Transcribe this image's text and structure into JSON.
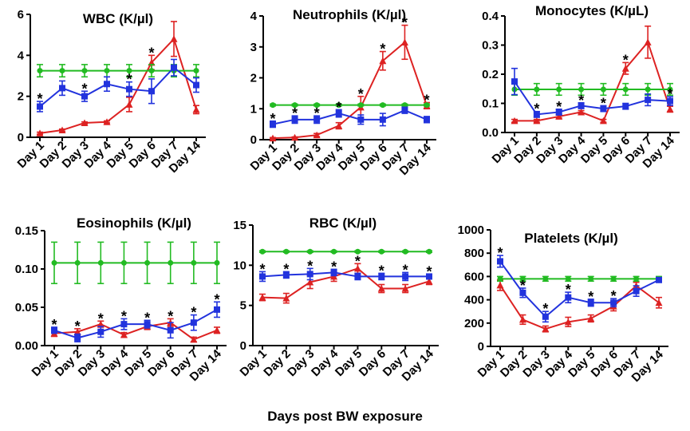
{
  "x_axis_label": "Days post BW exposure",
  "colors": {
    "control": "#22bb22",
    "treated_a": "#2233dd",
    "treated_b": "#dd2222"
  },
  "chart_data": [
    {
      "type": "line",
      "title": "WBC  (K/µl)",
      "categories": [
        "Day 1",
        "Day 2",
        "Day 3",
        "Day 4",
        "Day 5",
        "Day 6",
        "Day 7",
        "Day 14"
      ],
      "ylim": [
        0,
        6
      ],
      "yticks": [
        "0",
        "2",
        "4",
        "6"
      ],
      "series": [
        {
          "name": "green",
          "values": [
            3.25,
            3.25,
            3.25,
            3.25,
            3.25,
            3.25,
            3.25,
            3.25
          ],
          "errors": [
            0.3,
            0.3,
            0.3,
            0.3,
            0.3,
            0.3,
            0.3,
            0.3
          ]
        },
        {
          "name": "blue",
          "values": [
            1.5,
            2.4,
            2.0,
            2.6,
            2.35,
            2.25,
            3.4,
            2.55
          ],
          "errors": [
            0.25,
            0.35,
            0.25,
            0.35,
            0.35,
            0.6,
            0.4,
            0.35
          ]
        },
        {
          "name": "red",
          "values": [
            0.2,
            0.35,
            0.7,
            0.75,
            1.6,
            3.65,
            4.8,
            1.35
          ],
          "errors": [
            0.05,
            0.05,
            0.05,
            0.05,
            0.35,
            0.35,
            0.85,
            0.2
          ]
        }
      ],
      "stars": [
        true,
        false,
        true,
        false,
        true,
        true,
        false,
        false
      ]
    },
    {
      "type": "line",
      "title": "Neutrophils (K/µl)",
      "categories": [
        "Day 1",
        "Day 2",
        "Day 3",
        "Day 4",
        "Day 5",
        "Day 6",
        "Day 7",
        "Day 14"
      ],
      "ylim": [
        0,
        4
      ],
      "yticks": [
        "0",
        "1",
        "2",
        "3",
        "4"
      ],
      "series": [
        {
          "name": "green",
          "values": [
            1.12,
            1.12,
            1.12,
            1.12,
            1.12,
            1.12,
            1.12,
            1.12
          ],
          "errors": [
            0.03,
            0.03,
            0.03,
            0.03,
            0.03,
            0.03,
            0.03,
            0.03
          ]
        },
        {
          "name": "blue",
          "values": [
            0.5,
            0.65,
            0.65,
            0.85,
            0.65,
            0.65,
            0.95,
            0.65
          ],
          "errors": [
            0.1,
            0.12,
            0.12,
            0.12,
            0.15,
            0.2,
            0.1,
            0.1
          ]
        },
        {
          "name": "red",
          "values": [
            0.05,
            0.07,
            0.15,
            0.45,
            1.05,
            2.55,
            3.15,
            1.1
          ],
          "errors": [
            0.02,
            0.02,
            0.05,
            0.1,
            0.35,
            0.3,
            0.55,
            0.1
          ]
        }
      ],
      "stars": [
        true,
        true,
        true,
        true,
        true,
        true,
        true,
        true
      ]
    },
    {
      "type": "line",
      "title": "Monocytes (K/µL)",
      "categories": [
        "Day 1",
        "Day 2",
        "Day 3",
        "Day 4",
        "Day 5",
        "Day 6",
        "Day 7",
        "Day 14"
      ],
      "ylim": [
        0,
        0.4
      ],
      "yticks": [
        "0.0",
        "0.1",
        "0.2",
        "0.3",
        "0.4"
      ],
      "series": [
        {
          "name": "green",
          "values": [
            0.148,
            0.148,
            0.148,
            0.148,
            0.148,
            0.148,
            0.148,
            0.148
          ],
          "errors": [
            0.02,
            0.02,
            0.02,
            0.02,
            0.02,
            0.02,
            0.02,
            0.02
          ]
        },
        {
          "name": "blue",
          "values": [
            0.175,
            0.062,
            0.07,
            0.092,
            0.082,
            0.09,
            0.112,
            0.108
          ],
          "errors": [
            0.045,
            0.01,
            0.01,
            0.01,
            0.01,
            0.01,
            0.02,
            0.015
          ]
        },
        {
          "name": "red",
          "values": [
            0.04,
            0.04,
            0.055,
            0.07,
            0.04,
            0.22,
            0.31,
            0.08
          ],
          "errors": [
            0.005,
            0.005,
            0.005,
            0.005,
            0.005,
            0.02,
            0.055,
            0.01
          ]
        }
      ],
      "stars": [
        false,
        true,
        true,
        true,
        true,
        true,
        false,
        true
      ]
    },
    {
      "type": "line",
      "title": "Eosinophils  (K/µl)",
      "categories": [
        "Day 1",
        "Day 2",
        "Day 3",
        "Day 4",
        "Day 5",
        "Day 6",
        "Day 7",
        "Day 14"
      ],
      "ylim": [
        0,
        0.15
      ],
      "yticks": [
        "0.00",
        "0.05",
        "0.10",
        "0.15"
      ],
      "series": [
        {
          "name": "green",
          "values": [
            0.108,
            0.108,
            0.108,
            0.108,
            0.108,
            0.108,
            0.108,
            0.108
          ],
          "errors": [
            0.027,
            0.027,
            0.027,
            0.027,
            0.027,
            0.027,
            0.027,
            0.027
          ]
        },
        {
          "name": "blue",
          "values": [
            0.02,
            0.01,
            0.018,
            0.028,
            0.028,
            0.02,
            0.03,
            0.047
          ],
          "errors": [
            0.004,
            0.005,
            0.007,
            0.007,
            0.005,
            0.01,
            0.01,
            0.01
          ]
        },
        {
          "name": "red",
          "values": [
            0.016,
            0.018,
            0.028,
            0.014,
            0.025,
            0.03,
            0.008,
            0.02
          ],
          "errors": [
            0.004,
            0.004,
            0.004,
            0.003,
            0.004,
            0.005,
            0.003,
            0.004
          ]
        }
      ],
      "stars": [
        true,
        true,
        true,
        true,
        true,
        true,
        true,
        true
      ]
    },
    {
      "type": "line",
      "title": "RBC  (K/µl)",
      "categories": [
        "Day 1",
        "Day 2",
        "Day 3",
        "Day 4",
        "Day 5",
        "Day 6",
        "Day 7",
        "Day 14"
      ],
      "ylim": [
        0,
        15
      ],
      "yticks": [
        "0",
        "5",
        "10",
        "15"
      ],
      "series": [
        {
          "name": "green",
          "values": [
            11.7,
            11.7,
            11.7,
            11.7,
            11.7,
            11.7,
            11.7,
            11.7
          ],
          "errors": [
            0.1,
            0.1,
            0.1,
            0.1,
            0.1,
            0.1,
            0.1,
            0.1
          ]
        },
        {
          "name": "blue",
          "values": [
            8.6,
            8.8,
            8.9,
            9.1,
            8.6,
            8.6,
            8.6,
            8.6
          ],
          "errors": [
            0.6,
            0.4,
            0.7,
            0.4,
            0.4,
            0.4,
            0.5,
            0.3
          ]
        },
        {
          "name": "red",
          "values": [
            6.0,
            5.9,
            7.9,
            8.6,
            9.6,
            7.1,
            7.1,
            8.0
          ],
          "errors": [
            0.4,
            0.6,
            0.8,
            0.6,
            0.6,
            0.5,
            0.5,
            0.4
          ]
        }
      ],
      "stars": [
        true,
        true,
        true,
        true,
        true,
        true,
        true,
        true
      ]
    },
    {
      "type": "line",
      "title": "Platelets (K/µl)",
      "categories": [
        "Day 1",
        "Day 2",
        "Day 3",
        "Day 4",
        "Day 5",
        "Day 6",
        "Day 7",
        "Day 14"
      ],
      "ylim": [
        0,
        1000
      ],
      "yticks": [
        "0",
        "200",
        "400",
        "600",
        "800",
        "1000"
      ],
      "series": [
        {
          "name": "green",
          "values": [
            580,
            580,
            580,
            580,
            580,
            580,
            580,
            580
          ],
          "errors": [
            20,
            20,
            20,
            20,
            20,
            20,
            20,
            20
          ]
        },
        {
          "name": "blue",
          "values": [
            730,
            460,
            255,
            420,
            375,
            375,
            475,
            570
          ],
          "errors": [
            50,
            40,
            45,
            45,
            30,
            35,
            45,
            15
          ]
        },
        {
          "name": "red",
          "values": [
            525,
            230,
            150,
            210,
            240,
            345,
            520,
            375
          ],
          "errors": [
            45,
            40,
            25,
            40,
            30,
            40,
            30,
            45
          ]
        }
      ],
      "stars": [
        true,
        true,
        true,
        true,
        true,
        true,
        false,
        false
      ]
    }
  ]
}
